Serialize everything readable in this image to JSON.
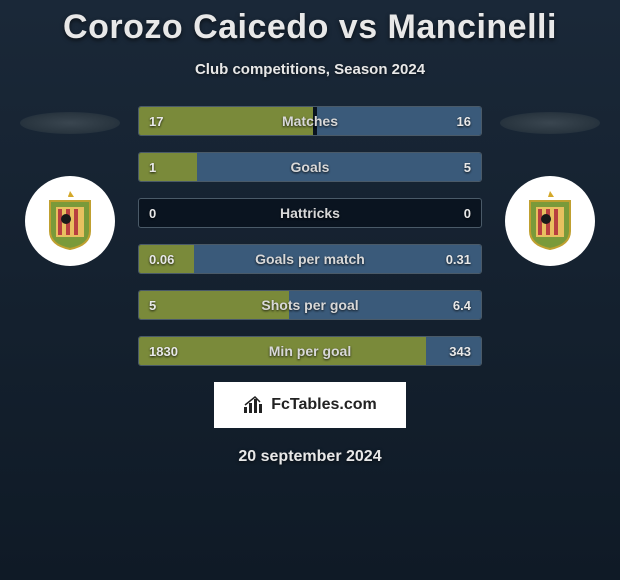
{
  "title": "Corozo Caicedo vs Mancinelli",
  "subtitle": "Club competitions, Season 2024",
  "date": "20 september 2024",
  "logo_text": "FcTables.com",
  "colors": {
    "left_bar": "#7a8a3a",
    "right_bar": "#3a5a7a",
    "row_bg": "#0a1420",
    "row_border": "#4a5a68"
  },
  "stats": [
    {
      "label": "Matches",
      "left_val": "17",
      "right_val": "16",
      "left_pct": 51,
      "right_pct": 48
    },
    {
      "label": "Goals",
      "left_val": "1",
      "right_val": "5",
      "left_pct": 17,
      "right_pct": 83
    },
    {
      "label": "Hattricks",
      "left_val": "0",
      "right_val": "0",
      "left_pct": 0,
      "right_pct": 0
    },
    {
      "label": "Goals per match",
      "left_val": "0.06",
      "right_val": "0.31",
      "left_pct": 16,
      "right_pct": 84
    },
    {
      "label": "Shots per goal",
      "left_val": "5",
      "right_val": "6.4",
      "left_pct": 44,
      "right_pct": 56
    },
    {
      "label": "Min per goal",
      "left_val": "1830",
      "right_val": "343",
      "left_pct": 84,
      "right_pct": 16
    }
  ],
  "badge": {
    "shield_fill": "#7a9a3a",
    "shield_stroke": "#c0a030",
    "star_fill": "#d4a82a",
    "stripes": "#b84040"
  }
}
